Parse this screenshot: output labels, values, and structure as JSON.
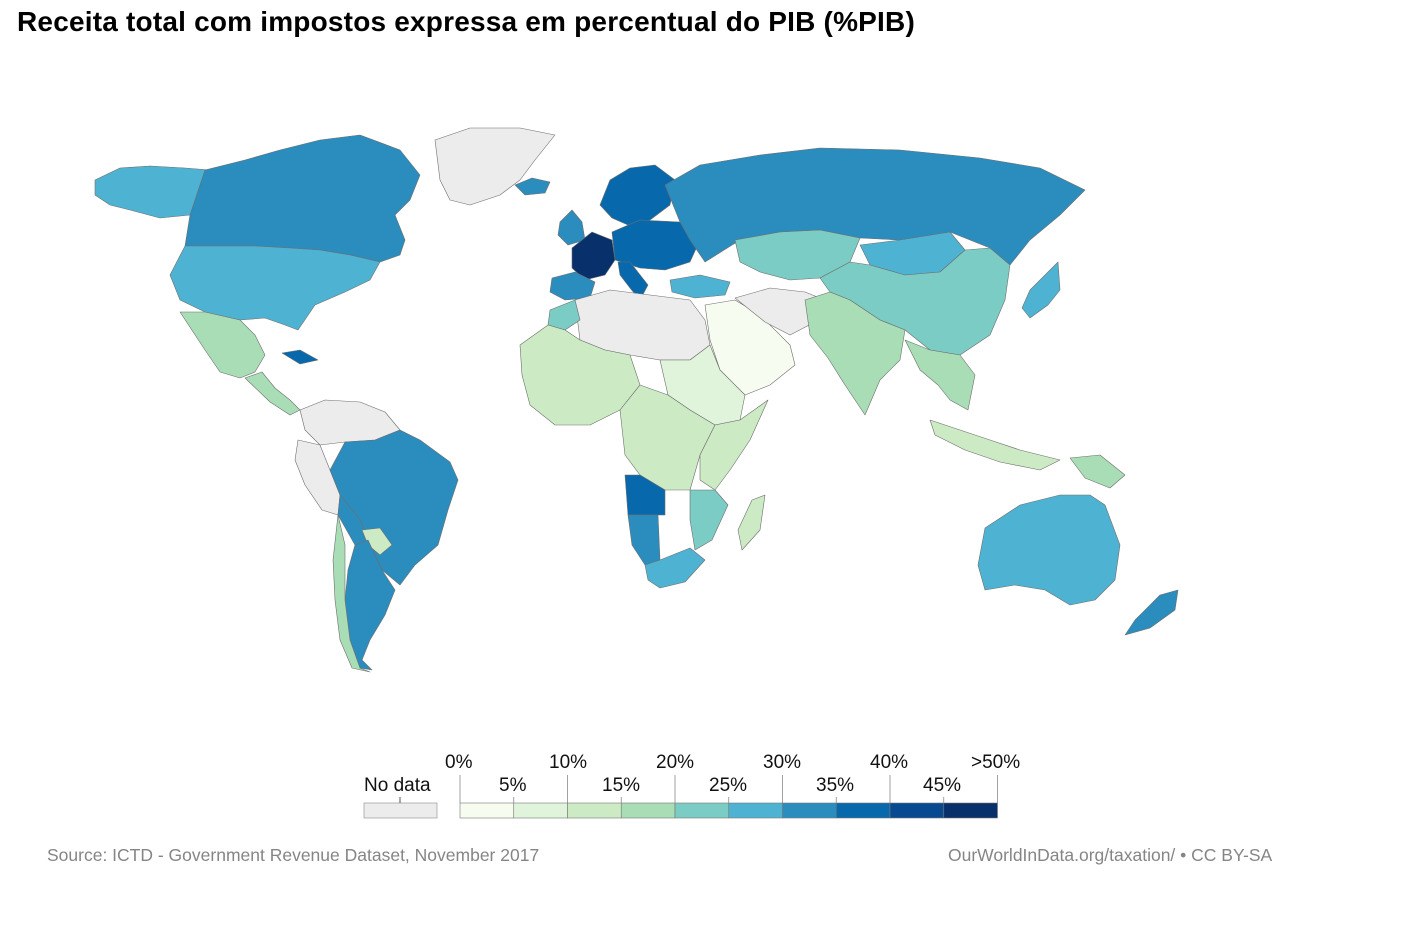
{
  "title": "Receita total com impostos expressa em percentual do PIB (%PIB)",
  "legend": {
    "no_data_label": "No data",
    "no_data_color": "#ececec",
    "top_ticks": [
      "0%",
      "10%",
      "20%",
      "30%",
      "40%",
      ">50%"
    ],
    "bottom_ticks": [
      "5%",
      "15%",
      "25%",
      "35%",
      "45%"
    ],
    "bins": [
      {
        "range": "0-5%",
        "color": "#f7fcf0"
      },
      {
        "range": "5-10%",
        "color": "#e0f3db"
      },
      {
        "range": "10-15%",
        "color": "#ccebc5"
      },
      {
        "range": "15-20%",
        "color": "#a8ddb5"
      },
      {
        "range": "20-25%",
        "color": "#7bccc4"
      },
      {
        "range": "25-30%",
        "color": "#4eb3d3"
      },
      {
        "range": "30-35%",
        "color": "#2b8cbe"
      },
      {
        "range": "35-40%",
        "color": "#0868ac"
      },
      {
        "range": "40-45%",
        "color": "#084a8f"
      },
      {
        "range": "45-50%",
        "color": "#08306b"
      }
    ]
  },
  "footer": {
    "source": "Source: ICTD - Government Revenue Dataset, November 2017",
    "credit": "OurWorldInData.org/taxation/ • CC BY-SA"
  },
  "regions": [
    {
      "name": "Canada",
      "color": "#2b8cbe"
    },
    {
      "name": "Alaska",
      "color": "#4eb3d3"
    },
    {
      "name": "Greenland",
      "color": "#ececec"
    },
    {
      "name": "United States",
      "color": "#4eb3d3"
    },
    {
      "name": "Mexico",
      "color": "#a8ddb5"
    },
    {
      "name": "Central America",
      "color": "#a8ddb5"
    },
    {
      "name": "Cuba",
      "color": "#0868ac"
    },
    {
      "name": "Colombia and Venezuela",
      "color": "#a8ddb5"
    },
    {
      "name": "Peru and Ecuador",
      "color": "#a8ddb5"
    },
    {
      "name": "Brazil",
      "color": "#2b8cbe"
    },
    {
      "name": "Bolivia",
      "color": "#2b8cbe"
    },
    {
      "name": "Paraguay",
      "color": "#ccebc5"
    },
    {
      "name": "Argentina",
      "color": "#2b8cbe"
    },
    {
      "name": "Chile",
      "color": "#a8ddb5"
    },
    {
      "name": "Iceland",
      "color": "#2b8cbe"
    },
    {
      "name": "Scandinavia",
      "color": "#0868ac"
    },
    {
      "name": "United Kingdom",
      "color": "#2b8cbe"
    },
    {
      "name": "France",
      "color": "#08306b"
    },
    {
      "name": "Central Europe",
      "color": "#0868ac"
    },
    {
      "name": "Iberia",
      "color": "#2b8cbe"
    },
    {
      "name": "Italy",
      "color": "#0868ac"
    },
    {
      "name": "Russia",
      "color": "#2b8cbe"
    },
    {
      "name": "Kazakhstan",
      "color": "#7bccc4"
    },
    {
      "name": "Mongolia",
      "color": "#4eb3d3"
    },
    {
      "name": "China",
      "color": "#7bccc4"
    },
    {
      "name": "Japan",
      "color": "#4eb3d3"
    },
    {
      "name": "Turkey",
      "color": "#4eb3d3"
    },
    {
      "name": "Middle East",
      "color": "#f7fcf0"
    },
    {
      "name": "Iran and Afghanistan",
      "color": "#ececec"
    },
    {
      "name": "India",
      "color": "#a8ddb5"
    },
    {
      "name": "Southeast Asia",
      "color": "#a8ddb5"
    },
    {
      "name": "Indonesia",
      "color": "#ccebc5"
    },
    {
      "name": "Papua New Guinea",
      "color": "#a8ddb5"
    },
    {
      "name": "Australia",
      "color": "#4eb3d3"
    },
    {
      "name": "New Zealand",
      "color": "#2b8cbe"
    },
    {
      "name": "North Africa",
      "color": "#ececec"
    },
    {
      "name": "Morocco",
      "color": "#7bccc4"
    },
    {
      "name": "West Africa",
      "color": "#ccebc5"
    },
    {
      "name": "Sudan region",
      "color": "#e0f3db"
    },
    {
      "name": "Central Africa",
      "color": "#ccebc5"
    },
    {
      "name": "East Africa",
      "color": "#ccebc5"
    },
    {
      "name": "Angola",
      "color": "#0868ac"
    },
    {
      "name": "Namibia",
      "color": "#2b8cbe"
    },
    {
      "name": "South Africa",
      "color": "#4eb3d3"
    },
    {
      "name": "Mozambique",
      "color": "#7bccc4"
    },
    {
      "name": "Madagascar",
      "color": "#ccebc5"
    }
  ]
}
